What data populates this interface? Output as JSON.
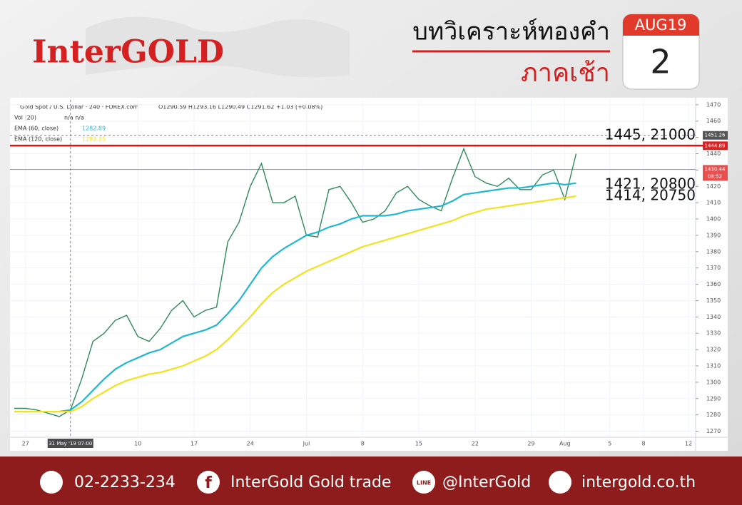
{
  "header": {
    "brand": "InterGOLD",
    "title": "บทวิเคราะห์ทองคำ",
    "subtitle": "ภาคเช้า",
    "calendar_month": "AUG19",
    "calendar_day": "2"
  },
  "footer": {
    "phone": "02-2233-234",
    "facebook": "InterGold Gold trade",
    "line": "@InterGold",
    "website": "intergold.co.th"
  },
  "chart_data": {
    "type": "line",
    "symbol": "Gold Spot / U.S. Dollar · 240 · FOREX.com",
    "ohlc": "O1290.59 H1293.16 L1290.49 C1291.62 +1.03 (+0.08%)",
    "volume": {
      "name": "Vol (20)",
      "value": "n/a n/a"
    },
    "categories": [
      null,
      "27",
      null,
      null,
      null,
      "31 May '19 07:00",
      null,
      null,
      null,
      null,
      null,
      "10",
      null,
      null,
      null,
      null,
      "17",
      null,
      null,
      null,
      null,
      "24",
      null,
      null,
      null,
      null,
      "Jul",
      null,
      null,
      null,
      null,
      "8",
      null,
      null,
      null,
      null,
      "15",
      null,
      null,
      null,
      null,
      "22",
      null,
      null,
      null,
      null,
      "29",
      null,
      null,
      "Aug",
      null,
      null,
      null,
      "5",
      null,
      null,
      "8",
      null,
      null,
      null,
      "12"
    ],
    "series": [
      {
        "name": "Gold Spot / U.S. Dollar · 240 · FOREX.com",
        "color": "#2e8b57",
        "values": [
          1284,
          1284,
          1283,
          1281,
          1279,
          1283,
          1302,
          1325,
          1330,
          1338,
          1341,
          1328,
          1325,
          1333,
          1344,
          1350,
          1340,
          1344,
          1346,
          1386,
          1398,
          1420,
          1434,
          1410,
          1410,
          1414,
          1390,
          1389,
          1418,
          1420,
          1410,
          1398,
          1400,
          1405,
          1416,
          1420,
          1412,
          1408,
          1405,
          1425,
          1443,
          1426,
          1422,
          1420,
          1425,
          1418,
          1418,
          1427,
          1430,
          1412,
          1440,
          null,
          null,
          null,
          null,
          null,
          null,
          null,
          null,
          null,
          null
        ]
      },
      {
        "name": "EMA (60, close)",
        "legend_value": "1282.89",
        "color": "#1fb8d0",
        "values": [
          1282,
          1282,
          1282,
          1282,
          1282,
          1283,
          1288,
          1295,
          1302,
          1308,
          1312,
          1315,
          1318,
          1320,
          1324,
          1328,
          1330,
          1332,
          1335,
          1342,
          1350,
          1360,
          1370,
          1377,
          1382,
          1386,
          1390,
          1392,
          1395,
          1397,
          1400,
          1402,
          1402,
          1402,
          1403,
          1405,
          1406,
          1407,
          1408,
          1411,
          1415,
          1416,
          1417,
          1418,
          1419,
          1419,
          1420,
          1421,
          1422,
          1421,
          1422,
          null,
          null,
          null,
          null,
          null,
          null,
          null,
          null,
          null,
          null
        ]
      },
      {
        "name": "EMA (120, close)",
        "legend_value": "1283.35",
        "color": "#f2e21b",
        "values": [
          1282,
          1282,
          1282,
          1282,
          1282,
          1282,
          1285,
          1290,
          1294,
          1298,
          1301,
          1303,
          1305,
          1306,
          1308,
          1310,
          1313,
          1316,
          1320,
          1326,
          1333,
          1340,
          1348,
          1355,
          1360,
          1364,
          1368,
          1371,
          1374,
          1377,
          1380,
          1383,
          1385,
          1387,
          1389,
          1391,
          1393,
          1395,
          1397,
          1399,
          1402,
          1404,
          1406,
          1407,
          1408,
          1409,
          1410,
          1411,
          1412,
          1413,
          1414,
          null,
          null,
          null,
          null,
          null,
          null,
          null,
          null,
          null,
          null
        ]
      }
    ],
    "ylim": [
      1258,
      1473
    ],
    "yticks": [
      1270,
      1280,
      1290,
      1300,
      1310,
      1320,
      1330,
      1340,
      1350,
      1360,
      1370,
      1380,
      1390,
      1400,
      1410,
      1420,
      1430,
      1440,
      1450,
      1460,
      1470
    ],
    "grid": true,
    "annotations": [
      {
        "text": "1445, 21000",
        "y": 1445
      },
      {
        "text": "1421, 20800",
        "y": 1421
      },
      {
        "text": "1414, 20750",
        "y": 1414
      }
    ],
    "axis_markers": [
      {
        "y": 1451.26,
        "color": "#555555"
      },
      {
        "y": 1444.89,
        "color": "#e02020"
      },
      {
        "y": 1430.44,
        "color": "#e85050"
      }
    ],
    "countdown": "08:52"
  }
}
